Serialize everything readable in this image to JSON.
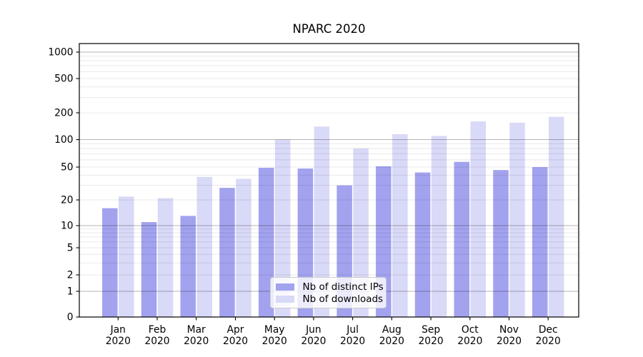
{
  "title": "NPARC 2020",
  "chart_data": {
    "type": "bar",
    "title": "NPARC 2020",
    "categories": [
      "Jan",
      "Feb",
      "Mar",
      "Apr",
      "May",
      "Jun",
      "Jul",
      "Aug",
      "Sep",
      "Oct",
      "Nov",
      "Dec"
    ],
    "x_tick_second_line": "2020",
    "series": [
      {
        "name": "Nb of distinct IPs",
        "color": "#a2a2ef",
        "values": [
          16,
          11,
          13,
          28,
          49,
          48,
          30,
          51,
          43,
          57,
          46,
          50
        ]
      },
      {
        "name": "Nb of downloads",
        "color": "#d9d9f8",
        "values": [
          22,
          21,
          38,
          36,
          100,
          140,
          80,
          115,
          110,
          160,
          155,
          180
        ]
      }
    ],
    "y_axis": {
      "scale": "log-like (0 baseline, compressed first decade)",
      "tick_values": [
        0,
        1,
        2,
        5,
        10,
        20,
        50,
        100,
        200,
        500,
        1000
      ],
      "tick_labels": [
        "0",
        "1",
        "2",
        "5",
        "10",
        "20",
        "50",
        "100",
        "200",
        "500",
        "1000"
      ],
      "minor_gridline_values": [
        3,
        4,
        6,
        7,
        8,
        9,
        30,
        40,
        60,
        70,
        80,
        90,
        300,
        400,
        600,
        700,
        800,
        900
      ],
      "range": [
        0,
        1250
      ]
    },
    "xlabel": "",
    "ylabel": "",
    "grid": "on",
    "legend_position": "lower center"
  },
  "colors": {
    "bar_distinct_ips": "#a2a2ef",
    "bar_downloads": "#d9d9f8",
    "grid_major": "rgba(0,0,0,0.29)",
    "grid_minor": "rgba(0,0,0,0.09)",
    "axis_frame": "#000000",
    "legend_border": "#cccccc",
    "text": "#000000"
  }
}
